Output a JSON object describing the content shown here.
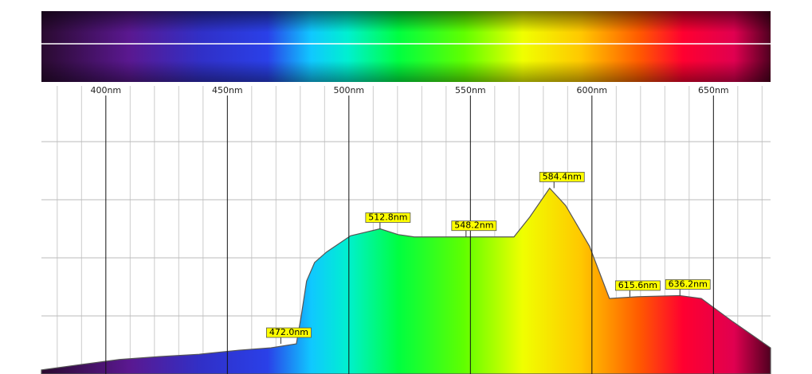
{
  "chart_data": {
    "type": "spectrum",
    "xlim": [
      373.5,
      673.5
    ],
    "xticks": [
      {
        "value": 400,
        "label": "400nm"
      },
      {
        "value": 450,
        "label": "450nm"
      },
      {
        "value": 500,
        "label": "500nm"
      },
      {
        "value": 550,
        "label": "550nm"
      },
      {
        "value": 600,
        "label": "600nm"
      },
      {
        "value": 650,
        "label": "650nm"
      }
    ],
    "xgrid_minor": [
      380,
      390,
      410,
      420,
      430,
      440,
      460,
      470,
      480,
      490,
      510,
      520,
      530,
      540,
      560,
      570,
      580,
      590,
      610,
      620,
      630,
      640,
      660,
      670
    ],
    "ylim": [
      0,
      5
    ],
    "yticks": [
      1,
      2,
      3,
      4
    ],
    "grid": true,
    "series": [
      {
        "color": "#555555",
        "x": [
          373.5,
          389.2,
          405.6,
          422.0,
          438.4,
          454.8,
          467.9,
          478.4,
          480.4,
          482.6,
          485.9,
          490.8,
          500.7,
          512.8,
          520.3,
          526.9,
          548.2,
          567.9,
          574.4,
          582.6,
          589.2,
          599.0,
          607.2,
          618.7,
          636.1,
          645.0,
          658.0,
          673.5
        ],
        "values": [
          0.07,
          0.16,
          0.25,
          0.3,
          0.34,
          0.41,
          0.45,
          0.52,
          1.0,
          1.6,
          1.92,
          2.1,
          2.38,
          2.5,
          2.4,
          2.36,
          2.36,
          2.36,
          2.7,
          3.2,
          2.9,
          2.2,
          1.3,
          1.33,
          1.35,
          1.3,
          0.9,
          0.45
        ]
      }
    ],
    "peaks": [
      {
        "x": 472.0,
        "y": 0.52,
        "label": "472.0nm"
      },
      {
        "x": 512.8,
        "y": 2.5,
        "label": "512.8nm"
      },
      {
        "x": 548.2,
        "y": 2.36,
        "label": "548.2nm"
      },
      {
        "x": 584.4,
        "y": 3.2,
        "label": "584.4nm"
      },
      {
        "x": 615.6,
        "y": 1.33,
        "label": "615.6nm"
      },
      {
        "x": 636.2,
        "y": 1.35,
        "label": "636.2nm"
      }
    ]
  }
}
